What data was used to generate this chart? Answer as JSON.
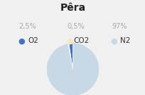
{
  "title": "Pêra",
  "slices": [
    2.5,
    0.5,
    97.0
  ],
  "labels": [
    "O2",
    "CO2",
    "N2"
  ],
  "percentages": [
    "2,5%",
    "0,5%",
    "97%"
  ],
  "colors": [
    "#4472C4",
    "#F5E6C8",
    "#C8D8E4"
  ],
  "title_fontsize": 10,
  "legend_fontsize": 7.5,
  "pct_fontsize": 7,
  "background_color": "#f0f0f0",
  "startangle": 90
}
